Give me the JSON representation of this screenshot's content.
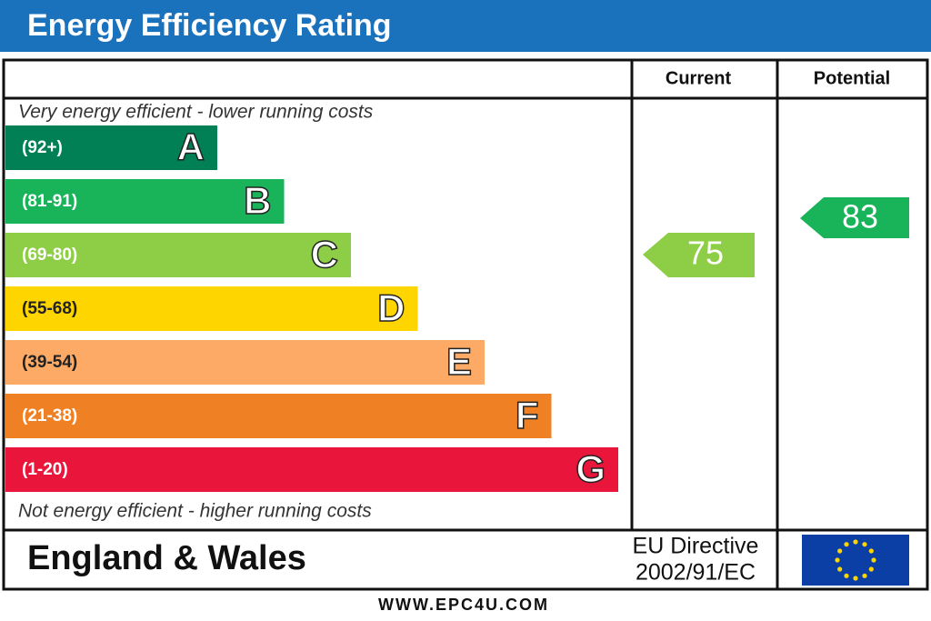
{
  "title": "Energy Efficiency Rating",
  "columns": {
    "current": "Current",
    "potential": "Potential"
  },
  "top_note": "Very energy efficient - lower running costs",
  "bands": [
    {
      "range": "(92+)",
      "letter": "A",
      "color": "#008054"
    },
    {
      "range": "(81-91)",
      "letter": "B",
      "color": "#19b459"
    },
    {
      "range": "(69-80)",
      "letter": "C",
      "color": "#8dce46"
    },
    {
      "range": "(55-68)",
      "letter": "D",
      "color": "#ffd500"
    },
    {
      "range": "(39-54)",
      "letter": "E",
      "color": "#fcaa65"
    },
    {
      "range": "(21-38)",
      "letter": "F",
      "color": "#ef8023"
    },
    {
      "range": "(1-20)",
      "letter": "G",
      "color": "#e9153b"
    }
  ],
  "bottom_note": "Not energy efficient - higher running costs",
  "current": {
    "value": 75,
    "color": "#8dce46"
  },
  "potential": {
    "value": 83,
    "color": "#19b459"
  },
  "region": "England & Wales",
  "directive": [
    "EU Directive",
    "2002/91/EC"
  ],
  "footer": "WWW.EPC4U.COM"
}
